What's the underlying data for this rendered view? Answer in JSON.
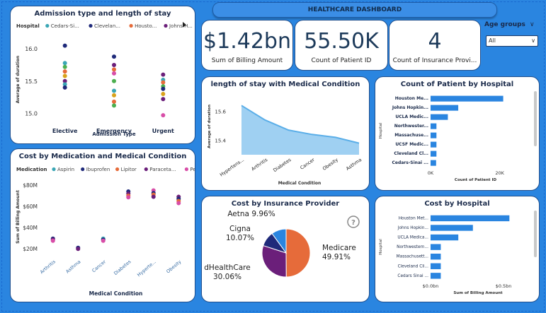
{
  "header": {
    "title": "HEALTHCARE DASHBOARD"
  },
  "kpis": [
    {
      "value": "$1.42bn",
      "label": "Sum of Billing Amount"
    },
    {
      "value": "55.50K",
      "label": "Count of Patient ID"
    },
    {
      "value": "4",
      "label": "Count of Insurance Provi..."
    }
  ],
  "slicer": {
    "title": "Age groups",
    "selected": "All"
  },
  "chart_data": [
    {
      "id": "admission",
      "type": "scatter",
      "title": "Admission type and length of stay",
      "legend_title": "Hospital",
      "legend": [
        {
          "name": "Cedars-Si...",
          "color": "#3aa6b5"
        },
        {
          "name": "Clevelan...",
          "color": "#1f2a7a"
        },
        {
          "name": "Housto...",
          "color": "#e66b3a"
        },
        {
          "name": "Johns H...",
          "color": "#6b1f7a"
        }
      ],
      "categories": [
        "Elective",
        "Emergency",
        "Urgent"
      ],
      "xlabel": "Admission Type",
      "ylabel": "Average of duration",
      "ylim": [
        14.85,
        16.2
      ],
      "yticks": [
        "16.0",
        "15.5",
        "15.0"
      ],
      "ytick_values": [
        16.0,
        15.5,
        15.0
      ],
      "points": [
        {
          "cat": 0,
          "y": 16.05,
          "color": "#1f2a7a"
        },
        {
          "cat": 0,
          "y": 15.78,
          "color": "#3aa6b5"
        },
        {
          "cat": 0,
          "y": 15.72,
          "color": "#4caf50"
        },
        {
          "cat": 0,
          "y": 15.65,
          "color": "#e66b3a"
        },
        {
          "cat": 0,
          "y": 15.58,
          "color": "#d9a21b"
        },
        {
          "cat": 0,
          "y": 15.5,
          "color": "#6b1f7a"
        },
        {
          "cat": 0,
          "y": 15.45,
          "color": "#3aa6b5"
        },
        {
          "cat": 0,
          "y": 15.4,
          "color": "#1f2a7a"
        },
        {
          "cat": 1,
          "y": 15.88,
          "color": "#1f2a7a"
        },
        {
          "cat": 1,
          "y": 15.75,
          "color": "#6b1f7a"
        },
        {
          "cat": 1,
          "y": 15.68,
          "color": "#e66b3a"
        },
        {
          "cat": 1,
          "y": 15.62,
          "color": "#d84ea8"
        },
        {
          "cat": 1,
          "y": 15.5,
          "color": "#4caf50"
        },
        {
          "cat": 1,
          "y": 15.35,
          "color": "#3aa6b5"
        },
        {
          "cat": 1,
          "y": 15.28,
          "color": "#d9a21b"
        },
        {
          "cat": 1,
          "y": 15.18,
          "color": "#e66b3a"
        },
        {
          "cat": 1,
          "y": 15.12,
          "color": "#4caf50"
        },
        {
          "cat": 2,
          "y": 15.6,
          "color": "#6b1f7a"
        },
        {
          "cat": 2,
          "y": 15.52,
          "color": "#3aa6b5"
        },
        {
          "cat": 2,
          "y": 15.48,
          "color": "#e66b3a"
        },
        {
          "cat": 2,
          "y": 15.42,
          "color": "#4caf50"
        },
        {
          "cat": 2,
          "y": 15.38,
          "color": "#1f2a7a"
        },
        {
          "cat": 2,
          "y": 15.3,
          "color": "#d9a21b"
        },
        {
          "cat": 2,
          "y": 15.22,
          "color": "#6b1f7a"
        },
        {
          "cat": 2,
          "y": 14.97,
          "color": "#d84ea8"
        }
      ]
    },
    {
      "id": "medication",
      "type": "scatter",
      "title": "Cost by Medication and Medical Condition",
      "legend_title": "Medication",
      "legend": [
        {
          "name": "Aspirin",
          "color": "#3aa6b5"
        },
        {
          "name": "Ibuprofen",
          "color": "#1f2a7a"
        },
        {
          "name": "Lipitor",
          "color": "#e66b3a"
        },
        {
          "name": "Paraceta...",
          "color": "#6b1f7a"
        },
        {
          "name": "Penicillin",
          "color": "#d84ea8"
        }
      ],
      "categories": [
        "Arthritis",
        "Asthma",
        "Cancer",
        "Diabetes",
        "Hyperte...",
        "Obesity"
      ],
      "xlabel": "Medical Condition",
      "ylabel": "Sum of Billing Amount",
      "ylim": [
        14,
        86
      ],
      "yticks": [
        "$80M",
        "$60M",
        "$40M",
        "$20M"
      ],
      "ytick_values": [
        80,
        60,
        40,
        20
      ],
      "points": [
        {
          "cat": 0,
          "y": 29.5,
          "color": "#1f2a7a"
        },
        {
          "cat": 0,
          "y": 28.5,
          "color": "#6b1f7a"
        },
        {
          "cat": 0,
          "y": 27.5,
          "color": "#d84ea8"
        },
        {
          "cat": 1,
          "y": 20.8,
          "color": "#1f2a7a"
        },
        {
          "cat": 1,
          "y": 19.8,
          "color": "#6b1f7a"
        },
        {
          "cat": 2,
          "y": 29.5,
          "color": "#3aa6b5"
        },
        {
          "cat": 2,
          "y": 28.5,
          "color": "#1f2a7a"
        },
        {
          "cat": 2,
          "y": 27.5,
          "color": "#d84ea8"
        },
        {
          "cat": 3,
          "y": 74,
          "color": "#1f2a7a"
        },
        {
          "cat": 3,
          "y": 72,
          "color": "#6b1f7a"
        },
        {
          "cat": 3,
          "y": 70,
          "color": "#e66b3a"
        },
        {
          "cat": 3,
          "y": 68.5,
          "color": "#d84ea8"
        },
        {
          "cat": 4,
          "y": 75,
          "color": "#d84ea8"
        },
        {
          "cat": 4,
          "y": 72.5,
          "color": "#1f2a7a"
        },
        {
          "cat": 4,
          "y": 71,
          "color": "#e66b3a"
        },
        {
          "cat": 4,
          "y": 69,
          "color": "#6b1f7a"
        },
        {
          "cat": 5,
          "y": 69,
          "color": "#6b1f7a"
        },
        {
          "cat": 5,
          "y": 67,
          "color": "#1f2a7a"
        },
        {
          "cat": 5,
          "y": 65,
          "color": "#e66b3a"
        },
        {
          "cat": 5,
          "y": 63,
          "color": "#d84ea8"
        }
      ]
    },
    {
      "id": "stay",
      "type": "area",
      "title": "length of stay with Medical Condition",
      "categories": [
        "Hypertens...",
        "Arthritis",
        "Diabetes",
        "Cancer",
        "Obesity",
        "Asthma"
      ],
      "values": [
        15.64,
        15.54,
        15.47,
        15.44,
        15.42,
        15.38
      ],
      "xlabel": "Medical Condition",
      "ylabel": "Average of duration",
      "ylim": [
        15.3,
        15.7
      ],
      "yticks": [
        "15.6",
        "15.4"
      ],
      "ytick_values": [
        15.6,
        15.4
      ],
      "color": "#5aaee8"
    },
    {
      "id": "patients",
      "type": "bar",
      "title": "Count of Patient by Hospital",
      "categories": [
        "Houston Me...",
        "Johns Hopkin...",
        "UCLA Medic...",
        "Northwester...",
        "Massachuse...",
        "UCSF Medic...",
        "Cleveland Cl...",
        "Cedars-Sinai ..."
      ],
      "values": [
        21000,
        8000,
        5000,
        1700,
        1700,
        1700,
        1700,
        1600
      ],
      "xlabel": "Count of Patient ID",
      "ylabel": "Hospital",
      "xlim": [
        0,
        26000
      ],
      "xticks": [
        "0K",
        "20K"
      ],
      "xtick_values": [
        0,
        20000
      ],
      "color": "#2a85e0"
    },
    {
      "id": "insurance",
      "type": "pie",
      "title": "Cost by Insurance Provider",
      "slices": [
        {
          "name": "Medicare",
          "value": 49.91,
          "label": "Medicare\n49.91%",
          "color": "#e66b3a"
        },
        {
          "name": "dHealthCare",
          "value": 30.06,
          "label": "dHealthCare\n30.06%",
          "color": "#6b1f7a"
        },
        {
          "name": "Cigna",
          "value": 10.07,
          "label": "Cigna\n10.07%",
          "color": "#1f2a7a"
        },
        {
          "name": "Aetna",
          "value": 9.96,
          "label": "Aetna 9.96%",
          "color": "#2a85e0"
        }
      ]
    },
    {
      "id": "billing",
      "type": "bar",
      "title": "Cost by Hospital",
      "categories": [
        "Houston Met...",
        "Johns Hopkin...",
        "UCLA Medica...",
        "Northwestern...",
        "Massachusett...",
        "Cleveland Cli...",
        "Cedars Sinai ..."
      ],
      "values": [
        0.54,
        0.29,
        0.19,
        0.07,
        0.07,
        0.07,
        0.07
      ],
      "xlabel": "Sum of Billing Amount",
      "ylabel": "Hospital",
      "xlim": [
        0,
        0.65
      ],
      "xticks": [
        "$0.0bn",
        "$0.5bn"
      ],
      "xtick_values": [
        0,
        0.5
      ],
      "color": "#2a85e0"
    }
  ]
}
